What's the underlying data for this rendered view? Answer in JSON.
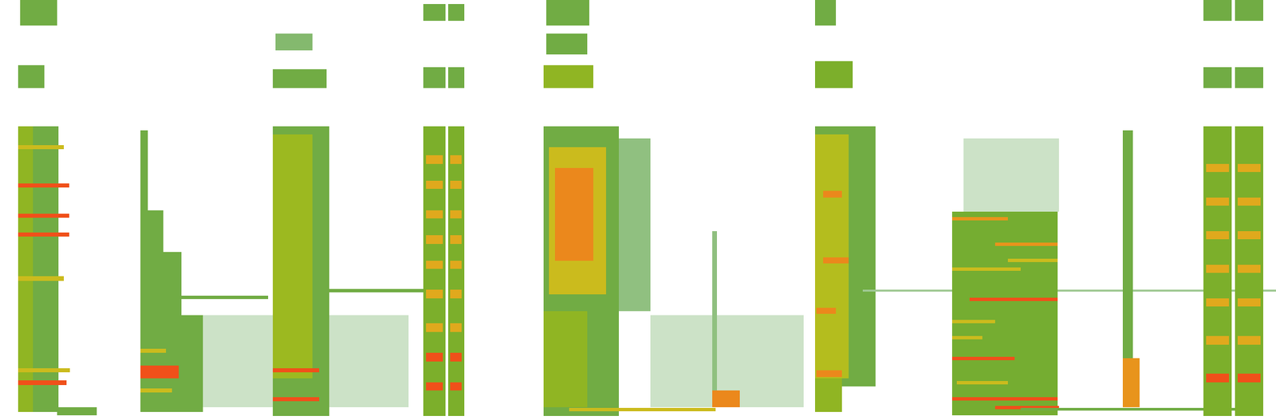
{
  "chart_data": {
    "type": "spectrogram",
    "xlim": [
      0,
      100
    ],
    "ylim": [
      0,
      100
    ],
    "zlim": [
      0,
      3
    ],
    "tick_labels": false,
    "grid": false,
    "cells": [
      [
        1.6,
        4.5,
        94,
        100,
        1
      ],
      [
        1.4,
        3.5,
        79,
        84.5,
        1
      ],
      [
        1.4,
        4.6,
        2,
        70,
        1
      ],
      [
        1.4,
        2.6,
        2,
        70,
        1.5
      ],
      [
        1.4,
        5.0,
        64.5,
        65.5,
        2
      ],
      [
        1.4,
        5.4,
        55.3,
        56.3,
        3
      ],
      [
        1.4,
        5.4,
        48.1,
        49.1,
        3
      ],
      [
        1.4,
        5.4,
        43.7,
        44.7,
        3
      ],
      [
        1.4,
        5.0,
        33.2,
        34.2,
        2
      ],
      [
        1.4,
        5.5,
        11.3,
        12.3,
        2
      ],
      [
        1.4,
        5.2,
        8.4,
        9.4,
        3
      ],
      [
        4.5,
        7.6,
        1.2,
        3.1,
        1
      ],
      [
        15.9,
        32,
        3,
        25,
        0.25
      ],
      [
        11.0,
        11.6,
        50,
        69,
        1
      ],
      [
        11.0,
        12.8,
        40,
        50,
        1
      ],
      [
        11.0,
        14.2,
        25,
        40,
        1
      ],
      [
        11.0,
        15.9,
        2,
        25,
        1
      ],
      [
        11.0,
        13.0,
        16,
        17,
        2
      ],
      [
        11.0,
        14.0,
        10,
        13,
        3
      ],
      [
        11.0,
        13.5,
        6.5,
        7.5,
        2
      ],
      [
        12.8,
        21.0,
        28.8,
        29.6,
        1
      ],
      [
        21.6,
        24.5,
        88,
        92,
        0.7
      ],
      [
        21.4,
        25.6,
        79,
        83.5,
        1
      ],
      [
        21.4,
        25.8,
        1,
        70,
        1
      ],
      [
        21.4,
        24.5,
        10,
        68,
        1.6
      ],
      [
        21.4,
        25.0,
        11.3,
        12.3,
        3
      ],
      [
        21.4,
        25.0,
        4.5,
        5.5,
        3
      ],
      [
        25.8,
        33.2,
        30.4,
        31.2,
        1
      ],
      [
        33.2,
        34.9,
        95,
        99,
        1
      ],
      [
        35.1,
        36.4,
        95,
        99,
        1
      ],
      [
        33.2,
        34.9,
        79,
        84,
        1
      ],
      [
        35.1,
        36.4,
        79,
        84,
        1
      ],
      [
        33.2,
        34.9,
        1,
        70,
        1.3
      ],
      [
        35.1,
        36.4,
        1,
        70,
        1.3
      ],
      [
        33.4,
        34.7,
        61,
        63,
        2.3
      ],
      [
        33.4,
        34.7,
        55,
        57,
        2.3
      ],
      [
        33.4,
        34.7,
        48,
        50,
        2.3
      ],
      [
        33.4,
        34.7,
        42,
        44,
        2.3
      ],
      [
        33.4,
        34.7,
        36,
        38,
        2.3
      ],
      [
        33.4,
        34.7,
        29,
        31,
        2.3
      ],
      [
        33.4,
        34.7,
        21,
        23,
        2.3
      ],
      [
        33.4,
        34.7,
        14,
        16,
        3
      ],
      [
        33.4,
        34.7,
        7,
        9,
        3
      ],
      [
        35.3,
        36.2,
        61,
        63,
        2.3
      ],
      [
        35.3,
        36.2,
        55,
        57,
        2.3
      ],
      [
        35.3,
        36.2,
        48,
        50,
        2.3
      ],
      [
        35.3,
        36.2,
        42,
        44,
        2.3
      ],
      [
        35.3,
        36.2,
        36,
        38,
        2.3
      ],
      [
        35.3,
        36.2,
        29,
        31,
        2.3
      ],
      [
        35.3,
        36.2,
        21,
        23,
        2.3
      ],
      [
        35.3,
        36.2,
        14,
        16,
        3
      ],
      [
        35.3,
        36.2,
        7,
        9,
        3
      ],
      [
        51,
        63,
        3,
        25,
        0.25
      ],
      [
        42.8,
        46.2,
        94,
        100,
        1
      ],
      [
        42.8,
        46,
        87,
        92,
        1
      ],
      [
        42.6,
        46.5,
        79,
        84.5,
        1.5
      ],
      [
        42.6,
        51.0,
        26,
        67,
        0.6
      ],
      [
        42.6,
        48.5,
        1,
        70,
        1
      ],
      [
        42.6,
        46,
        3,
        26,
        1.5
      ],
      [
        43,
        47.5,
        30,
        65,
        2
      ],
      [
        43.5,
        46.5,
        38,
        60,
        2.6
      ],
      [
        44.6,
        56.1,
        2.1,
        2.9,
        2
      ],
      [
        55.8,
        56.2,
        3,
        45,
        0.6
      ],
      [
        55.8,
        58.0,
        3,
        7,
        2.6
      ],
      [
        63.9,
        65.5,
        94,
        100,
        1
      ],
      [
        63.9,
        66.8,
        79,
        85.5,
        1.3
      ],
      [
        63.9,
        68.6,
        8,
        70,
        1
      ],
      [
        63.9,
        66.5,
        10,
        68,
        1.8
      ],
      [
        63.9,
        66.0,
        2,
        10,
        1.5
      ],
      [
        64.5,
        66,
        53,
        54.5,
        2.6
      ],
      [
        64.5,
        66.5,
        37.3,
        38.8,
        2.6
      ],
      [
        64,
        65.5,
        25.3,
        26.8,
        2.6
      ],
      [
        64,
        66,
        10.3,
        11.8,
        2.6
      ],
      [
        67.6,
        100,
        30.5,
        31.1,
        0.5
      ],
      [
        75.5,
        83,
        49.6,
        67,
        0.25
      ],
      [
        74.6,
        82.9,
        1.2,
        49.6,
        1.2
      ],
      [
        74.6,
        79,
        47.6,
        48.4,
        2.5
      ],
      [
        78,
        82.9,
        41.5,
        42.3,
        2.5
      ],
      [
        74.6,
        80,
        35.6,
        36.4,
        2
      ],
      [
        79,
        82.9,
        37.6,
        38.4,
        2
      ],
      [
        76,
        82.9,
        28.3,
        29.1,
        3
      ],
      [
        74.6,
        78,
        23,
        23.8,
        2
      ],
      [
        74.6,
        77,
        19.2,
        20,
        2
      ],
      [
        74.6,
        79.5,
        14.3,
        15.1,
        3
      ],
      [
        75,
        79,
        8.5,
        9.3,
        2
      ],
      [
        74.6,
        82.9,
        4.6,
        5.4,
        3
      ],
      [
        78,
        83,
        2.6,
        3.4,
        3
      ],
      [
        80,
        97,
        2.3,
        2.9,
        1
      ],
      [
        88.0,
        88.8,
        3,
        69,
        1
      ],
      [
        88.0,
        89.3,
        3,
        14.7,
        2.5
      ],
      [
        94.3,
        96.5,
        95,
        100,
        1
      ],
      [
        96.8,
        99,
        95,
        100,
        1
      ],
      [
        94.3,
        96.5,
        79,
        84,
        1
      ],
      [
        96.8,
        99,
        79,
        84,
        1
      ],
      [
        94.3,
        96.5,
        1,
        70,
        1.3
      ],
      [
        96.8,
        99,
        1,
        70,
        1.3
      ],
      [
        94.5,
        96.3,
        59,
        61,
        2.3
      ],
      [
        94.5,
        96.3,
        51,
        53,
        2.3
      ],
      [
        94.5,
        96.3,
        43,
        45,
        2.3
      ],
      [
        94.5,
        96.3,
        35,
        37,
        2.3
      ],
      [
        94.5,
        96.3,
        27,
        29,
        2.3
      ],
      [
        94.5,
        96.3,
        18,
        20,
        2.3
      ],
      [
        94.5,
        96.3,
        9,
        11,
        3
      ],
      [
        97.0,
        98.8,
        59,
        61,
        2.3
      ],
      [
        97.0,
        98.8,
        51,
        53,
        2.3
      ],
      [
        97.0,
        98.8,
        43,
        45,
        2.3
      ],
      [
        97.0,
        98.8,
        35,
        37,
        2.3
      ],
      [
        97.0,
        98.8,
        27,
        29,
        2.3
      ],
      [
        97.0,
        98.8,
        18,
        20,
        2.3
      ],
      [
        97.0,
        98.8,
        9,
        11,
        3
      ]
    ]
  }
}
